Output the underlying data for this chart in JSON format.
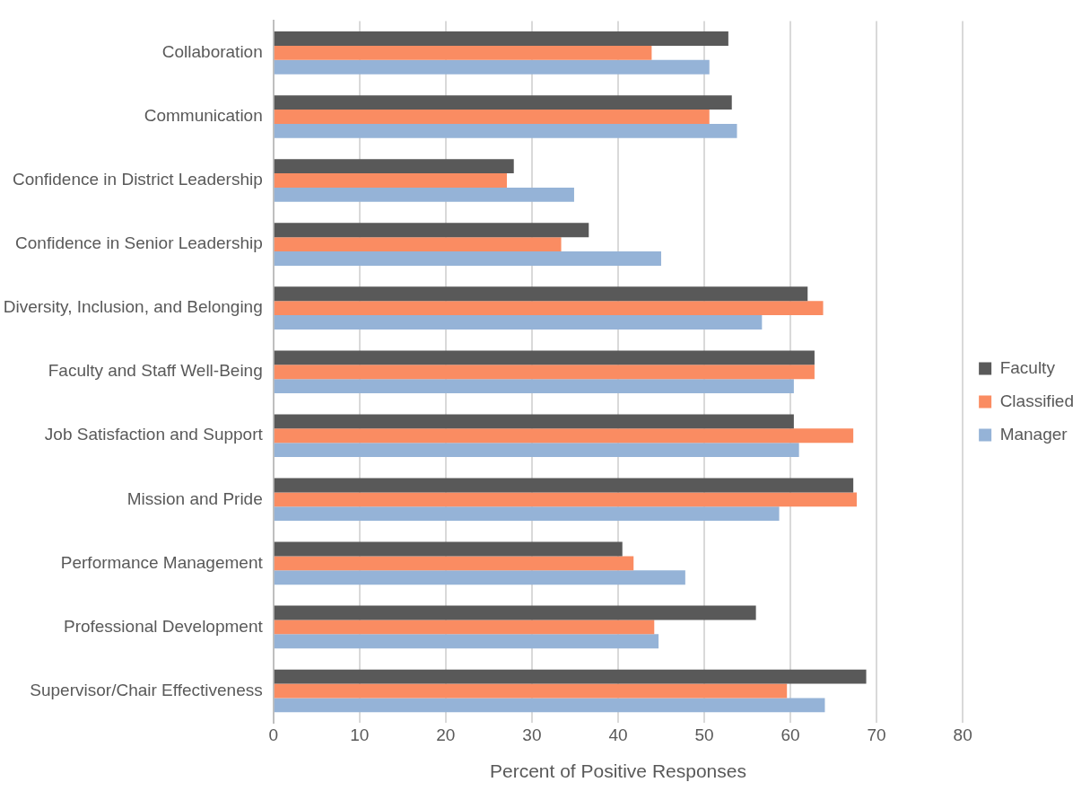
{
  "chart_data": {
    "type": "bar",
    "orientation": "horizontal",
    "xlabel": "Percent of Positive Responses",
    "categories": [
      "Collaboration",
      "Communication",
      "Confidence in District Leadership",
      "Confidence in Senior Leadership",
      "Diversity, Inclusion, and Belonging",
      "Faculty and Staff Well-Being",
      "Job Satisfaction and Support",
      "Mission and Pride",
      "Performance Management",
      "Professional Development",
      "Supervisor/Chair Effectiveness"
    ],
    "series": [
      {
        "name": "Faculty",
        "color": "#595959",
        "values": [
          52.8,
          53.2,
          27.9,
          36.6,
          62.0,
          62.8,
          60.4,
          67.3,
          40.5,
          56.0,
          68.8
        ]
      },
      {
        "name": "Classified",
        "color": "#fa8c62",
        "values": [
          43.9,
          50.6,
          27.1,
          33.4,
          63.8,
          62.8,
          67.3,
          67.7,
          41.8,
          44.2,
          59.6
        ]
      },
      {
        "name": "Manager",
        "color": "#95b3d7",
        "values": [
          50.6,
          53.8,
          34.9,
          45.0,
          56.7,
          60.4,
          61.0,
          58.7,
          47.8,
          44.7,
          64.0
        ]
      }
    ],
    "xlim": [
      0,
      80
    ],
    "xticks": [
      0,
      10,
      20,
      30,
      40,
      50,
      60,
      70,
      80
    ],
    "grid": "x",
    "legend": "right"
  }
}
